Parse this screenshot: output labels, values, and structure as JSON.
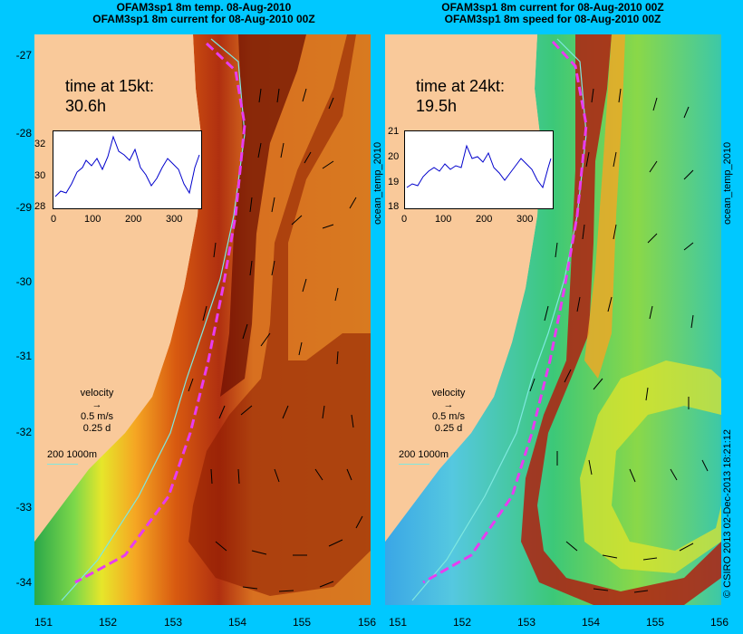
{
  "left_panel": {
    "title_line1": "OFAM3sp1 8m temp. 08-Aug-2010",
    "title_line2": "OFAM3sp1 8m current for 08-Aug-2010 00Z",
    "time_label": "time at 15kt:",
    "time_value": "30.6h",
    "inset_yticks": [
      "32",
      "30",
      "28"
    ],
    "inset_xticks": [
      "0",
      "100",
      "200",
      "300"
    ],
    "velocity_label": "velocity",
    "velocity_speed": "0.5 m/s",
    "velocity_time": "0.25 d",
    "scale_label": "200  1000m"
  },
  "right_panel": {
    "title_line1": "OFAM3sp1 8m current for 08-Aug-2010 00Z",
    "title_line2": "OFAM3sp1 8m speed for 08-Aug-2010 00Z",
    "time_label": "time at 24kt:",
    "time_value": "19.5h",
    "inset_yticks": [
      "21",
      "20",
      "19",
      "18"
    ],
    "inset_xticks": [
      "0",
      "100",
      "200",
      "300"
    ],
    "velocity_label": "velocity",
    "velocity_speed": "0.5 m/s",
    "velocity_time": "0.25 d",
    "scale_label": "200  1000m"
  },
  "axes": {
    "yticks": [
      "-27",
      "-28",
      "-29",
      "-30",
      "-31",
      "-32",
      "-33",
      "-34"
    ],
    "left_xticks": [
      "151",
      "152",
      "153",
      "154",
      "155",
      "156"
    ],
    "right_xticks": [
      "151",
      "152",
      "153",
      "154",
      "155",
      "156"
    ]
  },
  "side_labels": {
    "left_panel_vertical": "ocean_temp_2010",
    "right_panel_vertical": "ocean_temp_2010",
    "credit": "© CSIRO 2013   02-Dec-2013 18:21:12"
  },
  "colors": {
    "background": "#00c8ff",
    "land": "#f9c99a",
    "track": "#e83cf0",
    "inset_line": "#0000cc",
    "contour": "#7fe8e0"
  }
}
